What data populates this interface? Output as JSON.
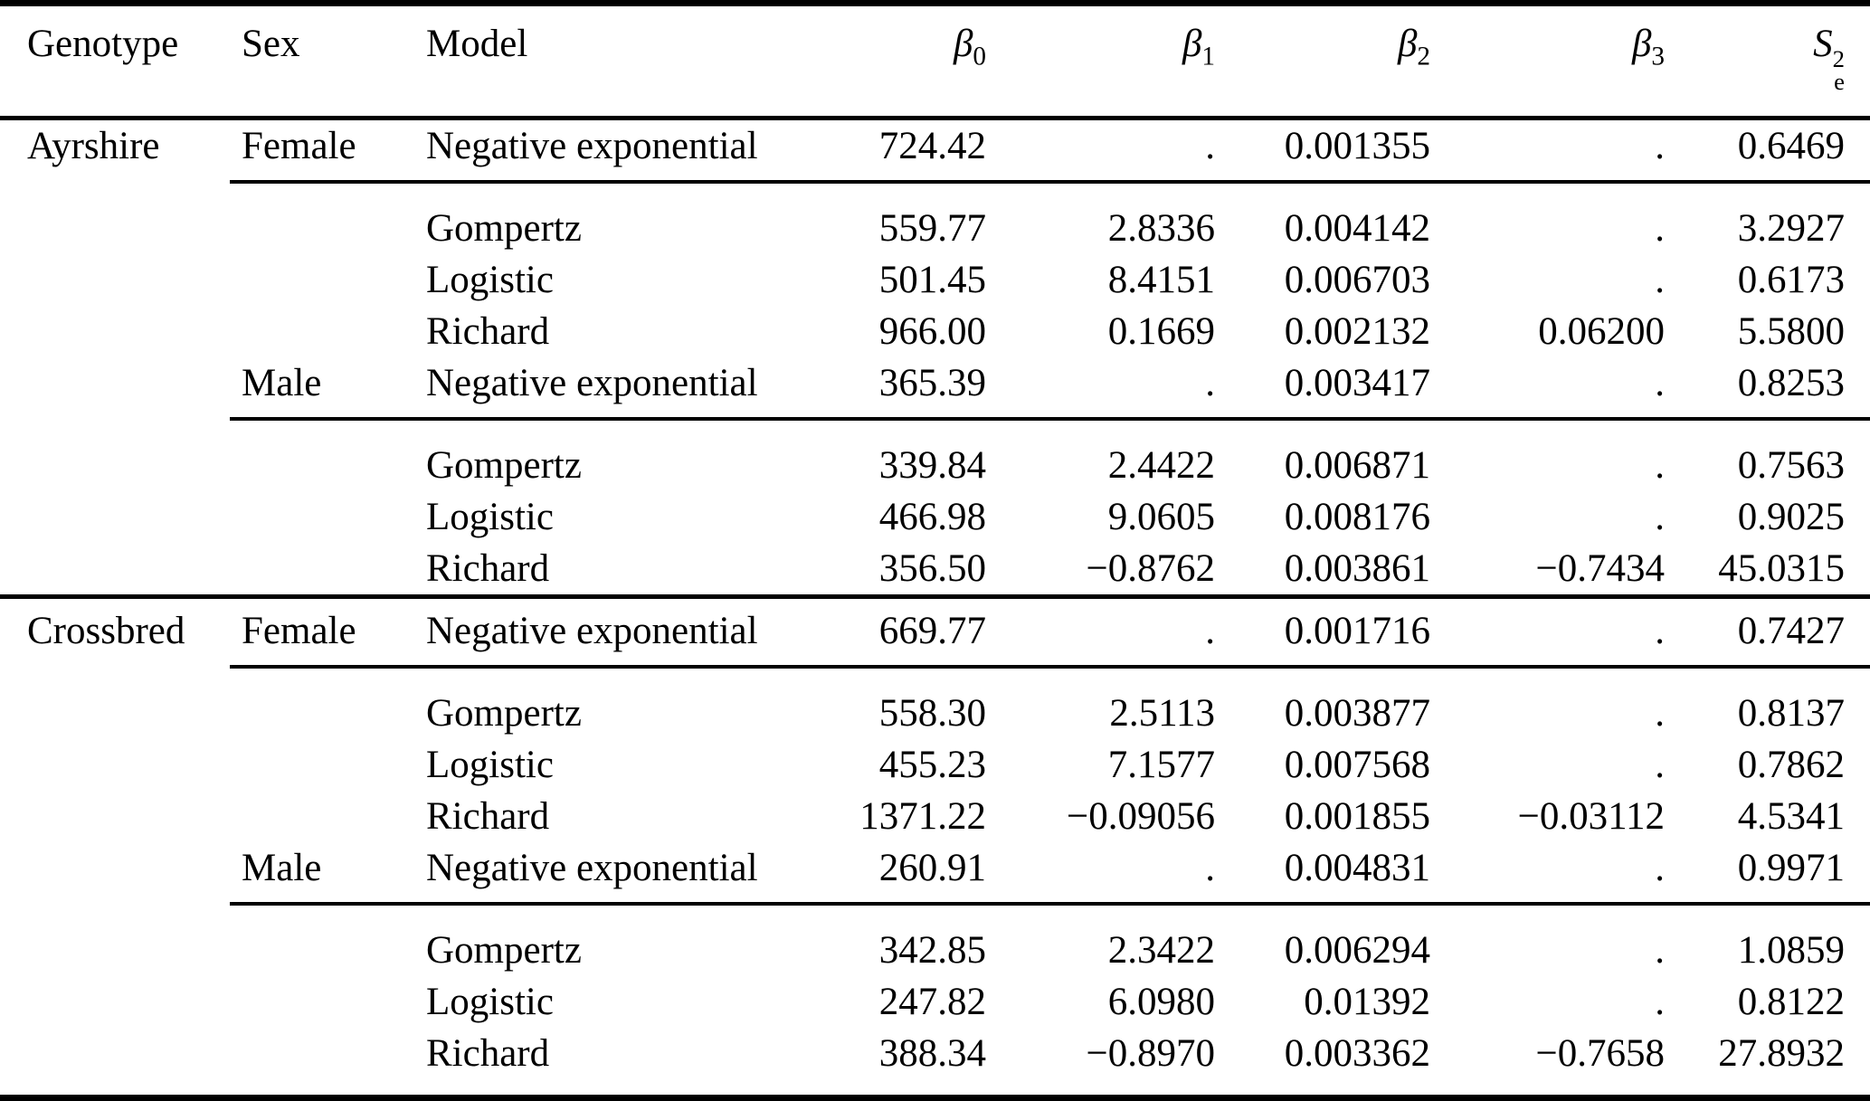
{
  "table": {
    "columns": {
      "genotype": "Genotype",
      "sex": "Sex",
      "model": "Model",
      "b0": {
        "base": "β",
        "sub": "0"
      },
      "b1": {
        "base": "β",
        "sub": "1"
      },
      "b2": {
        "base": "β",
        "sub": "2"
      },
      "b3": {
        "base": "β",
        "sub": "3"
      },
      "se2": {
        "base": "S",
        "sup": "2",
        "sub": "e"
      }
    },
    "rows": [
      {
        "genotype": "Ayrshire",
        "sex": "Female",
        "model": "Negative exponential",
        "b0": "724.42",
        "b1": ".",
        "b2": "0.001355",
        "b3": ".",
        "se2": "0.6469"
      },
      {
        "model": "Gompertz",
        "b0": "559.77",
        "b1": "2.8336",
        "b2": "0.004142",
        "b3": ".",
        "se2": "3.2927"
      },
      {
        "model": "Logistic",
        "b0": "501.45",
        "b1": "8.4151",
        "b2": "0.006703",
        "b3": ".",
        "se2": "0.6173"
      },
      {
        "model": "Richard",
        "b0": "966.00",
        "b1": "0.1669",
        "b2": "0.002132",
        "b3": "0.06200",
        "se2": "5.5800"
      },
      {
        "sex": "Male",
        "model": "Negative exponential",
        "b0": "365.39",
        "b1": ".",
        "b2": "0.003417",
        "b3": ".",
        "se2": "0.8253"
      },
      {
        "model": "Gompertz",
        "b0": "339.84",
        "b1": "2.4422",
        "b2": "0.006871",
        "b3": ".",
        "se2": "0.7563"
      },
      {
        "model": "Logistic",
        "b0": "466.98",
        "b1": "9.0605",
        "b2": "0.008176",
        "b3": ".",
        "se2": "0.9025"
      },
      {
        "model": "Richard",
        "b0": "356.50",
        "b1": "−0.8762",
        "b2": "0.003861",
        "b3": "−0.7434",
        "se2": "45.0315"
      },
      {
        "genotype": "Crossbred",
        "sex": "Female",
        "model": "Negative exponential",
        "b0": "669.77",
        "b1": ".",
        "b2": "0.001716",
        "b3": ".",
        "se2": "0.7427"
      },
      {
        "model": "Gompertz",
        "b0": "558.30",
        "b1": "2.5113",
        "b2": "0.003877",
        "b3": ".",
        "se2": "0.8137"
      },
      {
        "model": "Logistic",
        "b0": "455.23",
        "b1": "7.1577",
        "b2": "0.007568",
        "b3": ".",
        "se2": "0.7862"
      },
      {
        "model": "Richard",
        "b0": "1371.22",
        "b1": "−0.09056",
        "b2": "0.001855",
        "b3": "−0.03112",
        "se2": "4.5341"
      },
      {
        "sex": "Male",
        "model": "Negative exponential",
        "b0": "260.91",
        "b1": ".",
        "b2": "0.004831",
        "b3": ".",
        "se2": "0.9971"
      },
      {
        "model": "Gompertz",
        "b0": "342.85",
        "b1": "2.3422",
        "b2": "0.006294",
        "b3": ".",
        "se2": "1.0859"
      },
      {
        "model": "Logistic",
        "b0": "247.82",
        "b1": "6.0980",
        "b2": "0.01392",
        "b3": ".",
        "se2": "0.8122"
      },
      {
        "model": "Richard",
        "b0": "388.34",
        "b1": "−0.8970",
        "b2": "0.003362",
        "b3": "−0.7658",
        "se2": "27.8932"
      }
    ]
  }
}
